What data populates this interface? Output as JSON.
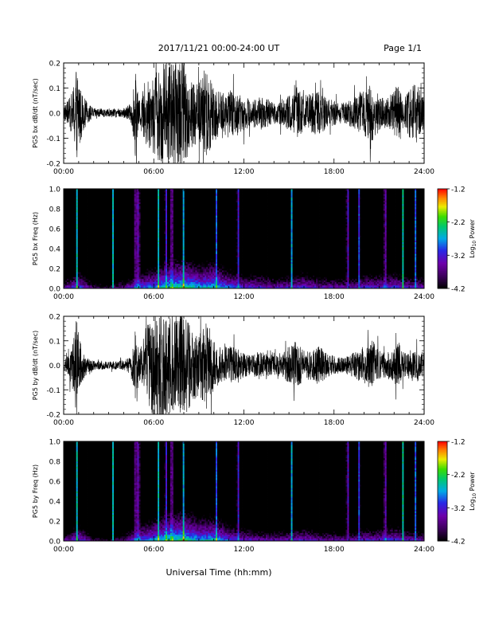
{
  "header": {
    "date_range": "2017/11/21  00:00-24:00 UT",
    "page": "Page 1/1"
  },
  "footer": {
    "xlabel": "Universal Time (hh:mm)"
  },
  "colors": {
    "trace": "#000000",
    "background": "#ffffff",
    "frame": "#000000"
  },
  "chart_data": [
    {
      "type": "line",
      "id": "bx-dbdt",
      "ylabel": "PG5 bx dB/dt (nT/sec)",
      "xlim": [
        0,
        24
      ],
      "ylim": [
        -0.2,
        0.2
      ],
      "xticks": [
        "00:00",
        "06:00",
        "12:00",
        "18:00",
        "24:00"
      ],
      "yticks": [
        "-0.2",
        "-0.1",
        "0.0",
        "0.1",
        "0.2"
      ],
      "amplitude_envelope": {
        "hours": [
          0,
          0.3,
          0.6,
          0.8,
          0.9,
          1.0,
          1.1,
          1.3,
          1.6,
          2.0,
          3.0,
          4.0,
          4.5,
          4.7,
          4.8,
          4.9,
          5.0,
          5.3,
          5.6,
          6.0,
          6.5,
          7.0,
          7.5,
          8.0,
          8.5,
          9.0,
          9.5,
          10.0,
          10.5,
          11.0,
          11.5,
          12.0,
          12.5,
          13.0,
          13.5,
          14.0,
          14.5,
          15.0,
          15.5,
          16.0,
          16.5,
          17.0,
          17.5,
          18.0,
          18.5,
          19.0,
          19.5,
          20.0,
          20.5,
          21.0,
          21.5,
          22.0,
          22.3,
          22.5,
          22.7,
          23.0,
          23.5,
          24.0
        ],
        "amplitude": [
          0.03,
          0.05,
          0.09,
          0.18,
          0.2,
          0.17,
          0.12,
          0.07,
          0.04,
          0.02,
          0.015,
          0.02,
          0.04,
          0.12,
          0.2,
          0.1,
          0.05,
          0.1,
          0.14,
          0.17,
          0.2,
          0.22,
          0.22,
          0.2,
          0.15,
          0.12,
          0.2,
          0.12,
          0.08,
          0.1,
          0.08,
          0.07,
          0.05,
          0.07,
          0.06,
          0.04,
          0.05,
          0.07,
          0.1,
          0.07,
          0.08,
          0.09,
          0.06,
          0.05,
          0.04,
          0.05,
          0.07,
          0.09,
          0.12,
          0.07,
          0.06,
          0.09,
          0.14,
          0.08,
          0.06,
          0.1,
          0.12,
          0.06
        ]
      }
    },
    {
      "type": "heatmap",
      "id": "bx-spec",
      "ylabel": "PG5 bx Freq (Hz)",
      "xlim": [
        0,
        24
      ],
      "ylim": [
        0,
        1.0
      ],
      "xticks": [
        "00:00",
        "06:00",
        "12:00",
        "18:00",
        "24:00"
      ],
      "yticks": [
        "0.0",
        "0.2",
        "0.4",
        "0.6",
        "0.8",
        "1.0"
      ],
      "colorbar": {
        "label": "Log10 Power",
        "label_main": "Log",
        "label_sub": "10",
        "label_tail": " Power",
        "range": [
          -4.2,
          -1.2
        ],
        "ticks": [
          "-1.2",
          "-2.2",
          "-3.2",
          "-4.2"
        ]
      },
      "low_freq_power": {
        "hours": [
          0,
          1,
          2,
          3,
          4,
          5,
          6,
          7,
          8,
          9,
          10,
          11,
          12,
          13,
          14,
          15,
          16,
          17,
          18,
          19,
          20,
          21,
          22,
          23,
          24
        ],
        "log_power": [
          -3.2,
          -2.6,
          -3.4,
          -3.6,
          -3.2,
          -2.6,
          -2.4,
          -2.0,
          -1.9,
          -2.2,
          -2.1,
          -2.5,
          -2.8,
          -2.8,
          -3.0,
          -2.9,
          -2.7,
          -3.0,
          -3.0,
          -3.1,
          -2.8,
          -2.8,
          -2.7,
          -2.9,
          -3.0
        ]
      },
      "broadband_bursts_hours": [
        0.9,
        3.3,
        4.8,
        5.0,
        6.3,
        6.8,
        7.2,
        8.0,
        10.2,
        11.6,
        15.2,
        18.9,
        19.7,
        21.4,
        22.6,
        23.4
      ]
    },
    {
      "type": "line",
      "id": "by-dbdt",
      "ylabel": "PG5 by dB/dt (nT/sec)",
      "xlim": [
        0,
        24
      ],
      "ylim": [
        -0.2,
        0.2
      ],
      "xticks": [
        "00:00",
        "06:00",
        "12:00",
        "18:00",
        "24:00"
      ],
      "yticks": [
        "-0.2",
        "-0.1",
        "0.0",
        "0.1",
        "0.2"
      ],
      "amplitude_envelope": {
        "hours": [
          0,
          0.3,
          0.6,
          0.8,
          0.9,
          1.0,
          1.1,
          1.3,
          1.6,
          2.0,
          3.0,
          4.0,
          4.5,
          4.7,
          4.8,
          4.9,
          5.0,
          5.3,
          5.6,
          6.0,
          6.5,
          7.0,
          7.5,
          8.0,
          8.5,
          9.0,
          9.5,
          10.0,
          10.5,
          11.0,
          11.5,
          12.0,
          12.5,
          13.0,
          13.5,
          14.0,
          14.5,
          15.0,
          15.5,
          16.0,
          16.5,
          17.0,
          17.5,
          18.0,
          18.5,
          19.0,
          19.5,
          20.0,
          20.5,
          21.0,
          21.5,
          22.0,
          22.3,
          22.5,
          22.7,
          23.0,
          23.5,
          24.0
        ],
        "amplitude": [
          0.02,
          0.04,
          0.1,
          0.2,
          0.22,
          0.16,
          0.1,
          0.06,
          0.03,
          0.02,
          0.015,
          0.02,
          0.04,
          0.1,
          0.18,
          0.1,
          0.06,
          0.12,
          0.18,
          0.22,
          0.24,
          0.22,
          0.2,
          0.22,
          0.16,
          0.12,
          0.18,
          0.1,
          0.07,
          0.08,
          0.07,
          0.05,
          0.04,
          0.06,
          0.05,
          0.04,
          0.04,
          0.08,
          0.1,
          0.06,
          0.06,
          0.08,
          0.05,
          0.04,
          0.03,
          0.04,
          0.06,
          0.07,
          0.11,
          0.06,
          0.05,
          0.07,
          0.1,
          0.06,
          0.05,
          0.06,
          0.07,
          0.05
        ]
      }
    },
    {
      "type": "heatmap",
      "id": "by-spec",
      "ylabel": "PG5 by Freq (Hz)",
      "xlim": [
        0,
        24
      ],
      "ylim": [
        0,
        1.0
      ],
      "xticks": [
        "00:00",
        "06:00",
        "12:00",
        "18:00",
        "24:00"
      ],
      "yticks": [
        "0.0",
        "0.2",
        "0.4",
        "0.6",
        "0.8",
        "1.0"
      ],
      "colorbar": {
        "label": "Log10 Power",
        "label_main": "Log",
        "label_sub": "10",
        "label_tail": " Power",
        "range": [
          -4.2,
          -1.2
        ],
        "ticks": [
          "-1.2",
          "-2.2",
          "-3.2",
          "-4.2"
        ]
      },
      "low_freq_power": {
        "hours": [
          0,
          1,
          2,
          3,
          4,
          5,
          6,
          7,
          8,
          9,
          10,
          11,
          12,
          13,
          14,
          15,
          16,
          17,
          18,
          19,
          20,
          21,
          22,
          23,
          24
        ],
        "log_power": [
          -3.3,
          -2.6,
          -3.5,
          -3.7,
          -3.3,
          -2.6,
          -2.3,
          -2.0,
          -1.9,
          -2.2,
          -2.2,
          -2.6,
          -2.9,
          -3.0,
          -3.1,
          -3.0,
          -2.8,
          -3.1,
          -3.1,
          -3.2,
          -2.9,
          -2.9,
          -2.7,
          -3.0,
          -3.1
        ]
      },
      "broadband_bursts_hours": [
        0.9,
        3.3,
        4.8,
        5.0,
        6.3,
        6.8,
        7.2,
        8.0,
        10.2,
        11.6,
        15.2,
        18.9,
        19.7,
        21.4,
        22.6,
        23.4
      ]
    }
  ]
}
